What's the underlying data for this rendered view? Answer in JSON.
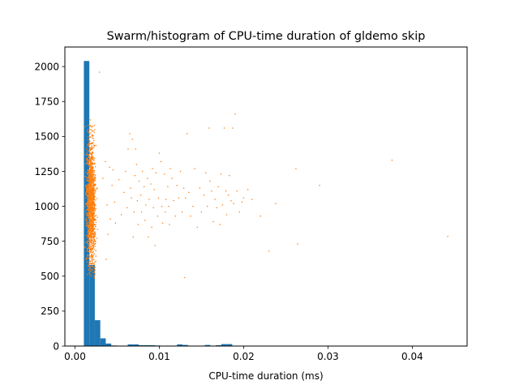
{
  "chart_data": {
    "type": "bar",
    "title": "Swarm/histogram of CPU-time duration of gldemo skip",
    "xlabel": "CPU-time duration (ms)",
    "ylabel": "",
    "xlim": [
      -0.0012,
      0.0465
    ],
    "ylim": [
      0,
      2140
    ],
    "x_ticks": [
      0.0,
      0.01,
      0.02,
      0.03,
      0.04
    ],
    "x_tick_labels": [
      "0.00",
      "0.01",
      "0.02",
      "0.03",
      "0.04"
    ],
    "y_ticks": [
      0,
      250,
      500,
      750,
      1000,
      1250,
      1500,
      1750,
      2000
    ],
    "y_tick_labels": [
      "0",
      "250",
      "500",
      "750",
      "1000",
      "1250",
      "1500",
      "1750",
      "2000"
    ],
    "grid": false,
    "colors": {
      "histogram": "#1f77b4",
      "swarm": "#ff7f0e"
    },
    "histogram": {
      "bin_width": 0.00065,
      "bins": [
        {
          "x_start": 0.00105,
          "count": 2040
        },
        {
          "x_start": 0.0017,
          "count": 580
        },
        {
          "x_start": 0.00235,
          "count": 185
        },
        {
          "x_start": 0.003,
          "count": 55
        },
        {
          "x_start": 0.00365,
          "count": 18
        },
        {
          "x_start": 0.0043,
          "count": 4
        },
        {
          "x_start": 0.00625,
          "count": 12
        },
        {
          "x_start": 0.0069,
          "count": 12
        },
        {
          "x_start": 0.00755,
          "count": 6
        },
        {
          "x_start": 0.0082,
          "count": 6
        },
        {
          "x_start": 0.00885,
          "count": 6
        },
        {
          "x_start": 0.0095,
          "count": 4
        },
        {
          "x_start": 0.0108,
          "count": 3
        },
        {
          "x_start": 0.0121,
          "count": 12
        },
        {
          "x_start": 0.01275,
          "count": 8
        },
        {
          "x_start": 0.0134,
          "count": 3
        },
        {
          "x_start": 0.0154,
          "count": 8
        },
        {
          "x_start": 0.0167,
          "count": 6
        },
        {
          "x_start": 0.01735,
          "count": 14
        },
        {
          "x_start": 0.018,
          "count": 14
        },
        {
          "x_start": 0.0206,
          "count": 3
        },
        {
          "x_start": 0.0258,
          "count": 3
        },
        {
          "x_start": 0.0374,
          "count": 3
        },
        {
          "x_start": 0.0439,
          "count": 3
        }
      ]
    },
    "swarm_outliers": [
      [
        0.0029,
        1960
      ],
      [
        0.0033,
        1200
      ],
      [
        0.0036,
        1320
      ],
      [
        0.0037,
        620
      ],
      [
        0.0038,
        1010
      ],
      [
        0.0039,
        800
      ],
      [
        0.0041,
        1280
      ],
      [
        0.0042,
        910
      ],
      [
        0.0044,
        1150
      ],
      [
        0.0045,
        1260
      ],
      [
        0.0047,
        1030
      ],
      [
        0.0048,
        880
      ],
      [
        0.0052,
        1190
      ],
      [
        0.0055,
        940
      ],
      [
        0.0058,
        1100
      ],
      [
        0.006,
        1250
      ],
      [
        0.0062,
        990
      ],
      [
        0.0063,
        1410
      ],
      [
        0.0065,
        1520
      ],
      [
        0.0066,
        1130
      ],
      [
        0.0067,
        1060
      ],
      [
        0.0068,
        1480
      ],
      [
        0.0069,
        780
      ],
      [
        0.007,
        960
      ],
      [
        0.0071,
        1220
      ],
      [
        0.0072,
        1410
      ],
      [
        0.0073,
        1300
      ],
      [
        0.0074,
        1040
      ],
      [
        0.0075,
        870
      ],
      [
        0.0076,
        1180
      ],
      [
        0.0078,
        1080
      ],
      [
        0.0079,
        960
      ],
      [
        0.008,
        1250
      ],
      [
        0.0082,
        1140
      ],
      [
        0.0083,
        900
      ],
      [
        0.0084,
        1010
      ],
      [
        0.0086,
        1200
      ],
      [
        0.0087,
        780
      ],
      [
        0.0088,
        1050
      ],
      [
        0.009,
        1160
      ],
      [
        0.0091,
        850
      ],
      [
        0.0092,
        1270
      ],
      [
        0.0093,
        990
      ],
      [
        0.0094,
        1120
      ],
      [
        0.0095,
        720
      ],
      [
        0.0096,
        1240
      ],
      [
        0.0098,
        930
      ],
      [
        0.0099,
        1060
      ],
      [
        0.01,
        1380
      ],
      [
        0.0102,
        1320
      ],
      [
        0.0103,
        1000
      ],
      [
        0.0104,
        880
      ],
      [
        0.0106,
        1230
      ],
      [
        0.0107,
        960
      ],
      [
        0.0108,
        1050
      ],
      [
        0.011,
        1140
      ],
      [
        0.0111,
        1000
      ],
      [
        0.0112,
        870
      ],
      [
        0.0113,
        1270
      ],
      [
        0.0115,
        1200
      ],
      [
        0.0117,
        1040
      ],
      [
        0.0119,
        930
      ],
      [
        0.0121,
        1150
      ],
      [
        0.0123,
        1060
      ],
      [
        0.0125,
        1250
      ],
      [
        0.0127,
        960
      ],
      [
        0.0129,
        1130
      ],
      [
        0.013,
        490
      ],
      [
        0.0131,
        1060
      ],
      [
        0.0133,
        1520
      ],
      [
        0.0135,
        1100
      ],
      [
        0.0137,
        930
      ],
      [
        0.014,
        1000
      ],
      [
        0.0142,
        1270
      ],
      [
        0.0145,
        850
      ],
      [
        0.0148,
        1130
      ],
      [
        0.015,
        960
      ],
      [
        0.0153,
        1080
      ],
      [
        0.0155,
        1240
      ],
      [
        0.0157,
        1000
      ],
      [
        0.0159,
        1560
      ],
      [
        0.016,
        1180
      ],
      [
        0.0162,
        1110
      ],
      [
        0.0164,
        890
      ],
      [
        0.0166,
        1050
      ],
      [
        0.0168,
        990
      ],
      [
        0.017,
        1140
      ],
      [
        0.0172,
        870
      ],
      [
        0.0173,
        1230
      ],
      [
        0.0175,
        1010
      ],
      [
        0.0177,
        1560
      ],
      [
        0.0179,
        1110
      ],
      [
        0.018,
        940
      ],
      [
        0.0182,
        1080
      ],
      [
        0.0183,
        1220
      ],
      [
        0.0185,
        1040
      ],
      [
        0.0187,
        1560
      ],
      [
        0.0188,
        1020
      ],
      [
        0.019,
        1660
      ],
      [
        0.0192,
        1110
      ],
      [
        0.0195,
        960
      ],
      [
        0.0198,
        1030
      ],
      [
        0.02,
        1060
      ],
      [
        0.0205,
        1120
      ],
      [
        0.021,
        1050
      ],
      [
        0.022,
        930
      ],
      [
        0.023,
        680
      ],
      [
        0.0238,
        1020
      ],
      [
        0.0262,
        1270
      ],
      [
        0.0264,
        730
      ],
      [
        0.029,
        1150
      ],
      [
        0.0376,
        1330
      ],
      [
        0.0442,
        785
      ]
    ]
  }
}
